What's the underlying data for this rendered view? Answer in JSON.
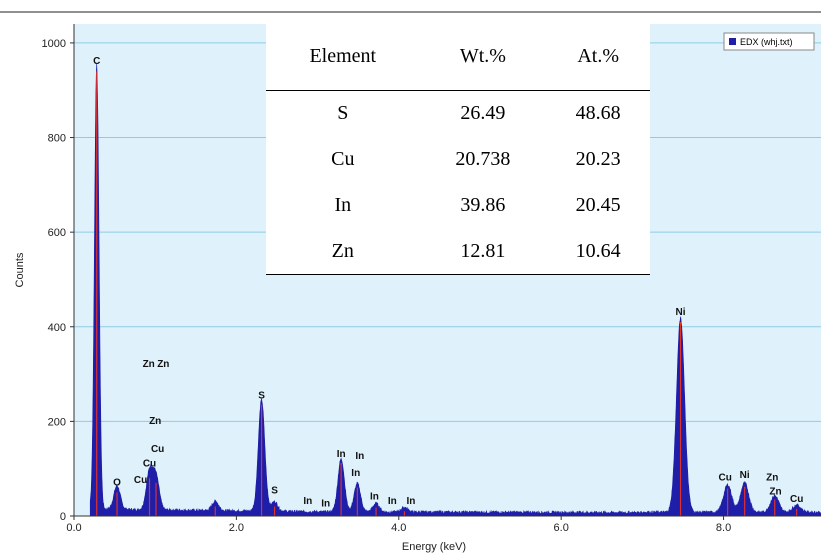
{
  "chart_data": {
    "type": "area",
    "xlabel": "Energy (keV)",
    "ylabel": "Counts",
    "xlim": [
      0,
      9.2
    ],
    "ylim": [
      0,
      1040
    ],
    "x_ticks": [
      "0.0",
      "2.0",
      "4.0",
      "6.0",
      "8.0"
    ],
    "y_ticks": [
      "0",
      "200",
      "400",
      "600",
      "800",
      "1000"
    ],
    "grid": "horizontal",
    "legend": {
      "placement": "top-right",
      "label": "EDX (whj.txt)"
    },
    "colors": {
      "plot_bg": "#dff2fb",
      "fill": "#1e1ea8",
      "grid": "#8fcbe3",
      "marker": "#e0302a"
    },
    "series": [
      {
        "name": "EDX (whj.txt)",
        "peaks": [
          {
            "x": 0.28,
            "y": 940
          },
          {
            "x": 0.53,
            "y": 50
          },
          {
            "x": 0.93,
            "y": 80
          },
          {
            "x": 1.01,
            "y": 70
          },
          {
            "x": 1.74,
            "y": 20
          },
          {
            "x": 2.31,
            "y": 235
          },
          {
            "x": 2.47,
            "y": 20
          },
          {
            "x": 3.29,
            "y": 112
          },
          {
            "x": 3.49,
            "y": 60
          },
          {
            "x": 3.72,
            "y": 18
          },
          {
            "x": 4.07,
            "y": 10
          },
          {
            "x": 7.47,
            "y": 410
          },
          {
            "x": 8.05,
            "y": 58
          },
          {
            "x": 8.26,
            "y": 62
          },
          {
            "x": 8.63,
            "y": 35
          },
          {
            "x": 8.9,
            "y": 15
          }
        ]
      }
    ],
    "peak_labels": [
      {
        "text": "C",
        "x": 0.28,
        "y": 955
      },
      {
        "text": "O",
        "x": 0.53,
        "y": 65
      },
      {
        "text": "Cu",
        "x": 0.82,
        "y": 70
      },
      {
        "text": "Cu",
        "x": 0.93,
        "y": 105
      },
      {
        "text": "Cu",
        "x": 1.03,
        "y": 135
      },
      {
        "text": "Zn",
        "x": 1.0,
        "y": 195
      },
      {
        "text": "Zn",
        "x": 0.92,
        "y": 315
      },
      {
        "text": "Zn",
        "x": 1.1,
        "y": 315
      },
      {
        "text": "S",
        "x": 2.31,
        "y": 248
      },
      {
        "text": "S",
        "x": 2.47,
        "y": 48
      },
      {
        "text": "In",
        "x": 2.88,
        "y": 25
      },
      {
        "text": "In",
        "x": 3.1,
        "y": 20
      },
      {
        "text": "In",
        "x": 3.29,
        "y": 125
      },
      {
        "text": "In",
        "x": 3.52,
        "y": 120
      },
      {
        "text": "In",
        "x": 3.47,
        "y": 85
      },
      {
        "text": "In",
        "x": 3.7,
        "y": 35
      },
      {
        "text": "In",
        "x": 3.92,
        "y": 25
      },
      {
        "text": "In",
        "x": 4.15,
        "y": 25
      },
      {
        "text": "Ni",
        "x": 7.47,
        "y": 425
      },
      {
        "text": "Cu",
        "x": 8.02,
        "y": 75
      },
      {
        "text": "Ni",
        "x": 8.26,
        "y": 80
      },
      {
        "text": "Zn",
        "x": 8.6,
        "y": 75
      },
      {
        "text": "Zn",
        "x": 8.64,
        "y": 45
      },
      {
        "text": "Cu",
        "x": 8.9,
        "y": 30
      }
    ]
  },
  "table": {
    "headers": [
      "Element",
      "Wt.%",
      "At.%"
    ],
    "rows": [
      [
        "S",
        "26.49",
        "48.68"
      ],
      [
        "Cu",
        "20.738",
        "20.23"
      ],
      [
        "In",
        "39.86",
        "20.45"
      ],
      [
        "Zn",
        "12.81",
        "10.64"
      ]
    ]
  }
}
